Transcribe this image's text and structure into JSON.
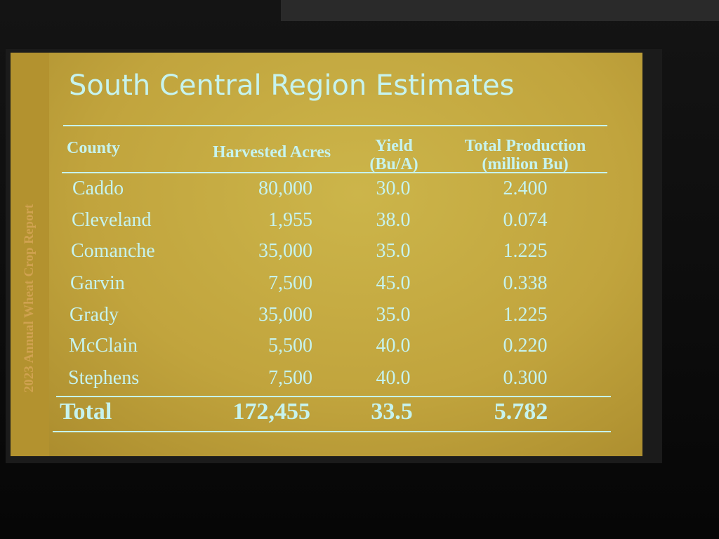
{
  "sidebar": "2023 Annual Wheat Crop Report",
  "title": "South Central Region Estimates",
  "table": {
    "header": [
      [
        "County"
      ],
      [
        "Harvested Acres"
      ],
      [
        "Yield",
        "(Bu/A)"
      ],
      [
        "Total Production",
        "(million Bu)"
      ]
    ],
    "rows": [
      [
        "Caddo",
        "80,000",
        "30.0",
        "2.400"
      ],
      [
        "Cleveland",
        "1,955",
        "38.0",
        "0.074"
      ],
      [
        "Comanche",
        "35,000",
        "35.0",
        "1.225"
      ],
      [
        "Garvin",
        "7,500",
        "45.0",
        "0.338"
      ],
      [
        "Grady",
        "35,000",
        "35.0",
        "1.225"
      ],
      [
        "McClain",
        "5,500",
        "40.0",
        "0.220"
      ],
      [
        "Stephens",
        "7,500",
        "40.0",
        "0.300"
      ]
    ],
    "total": [
      "Total",
      "172,455",
      "33.5",
      "5.782"
    ]
  }
}
